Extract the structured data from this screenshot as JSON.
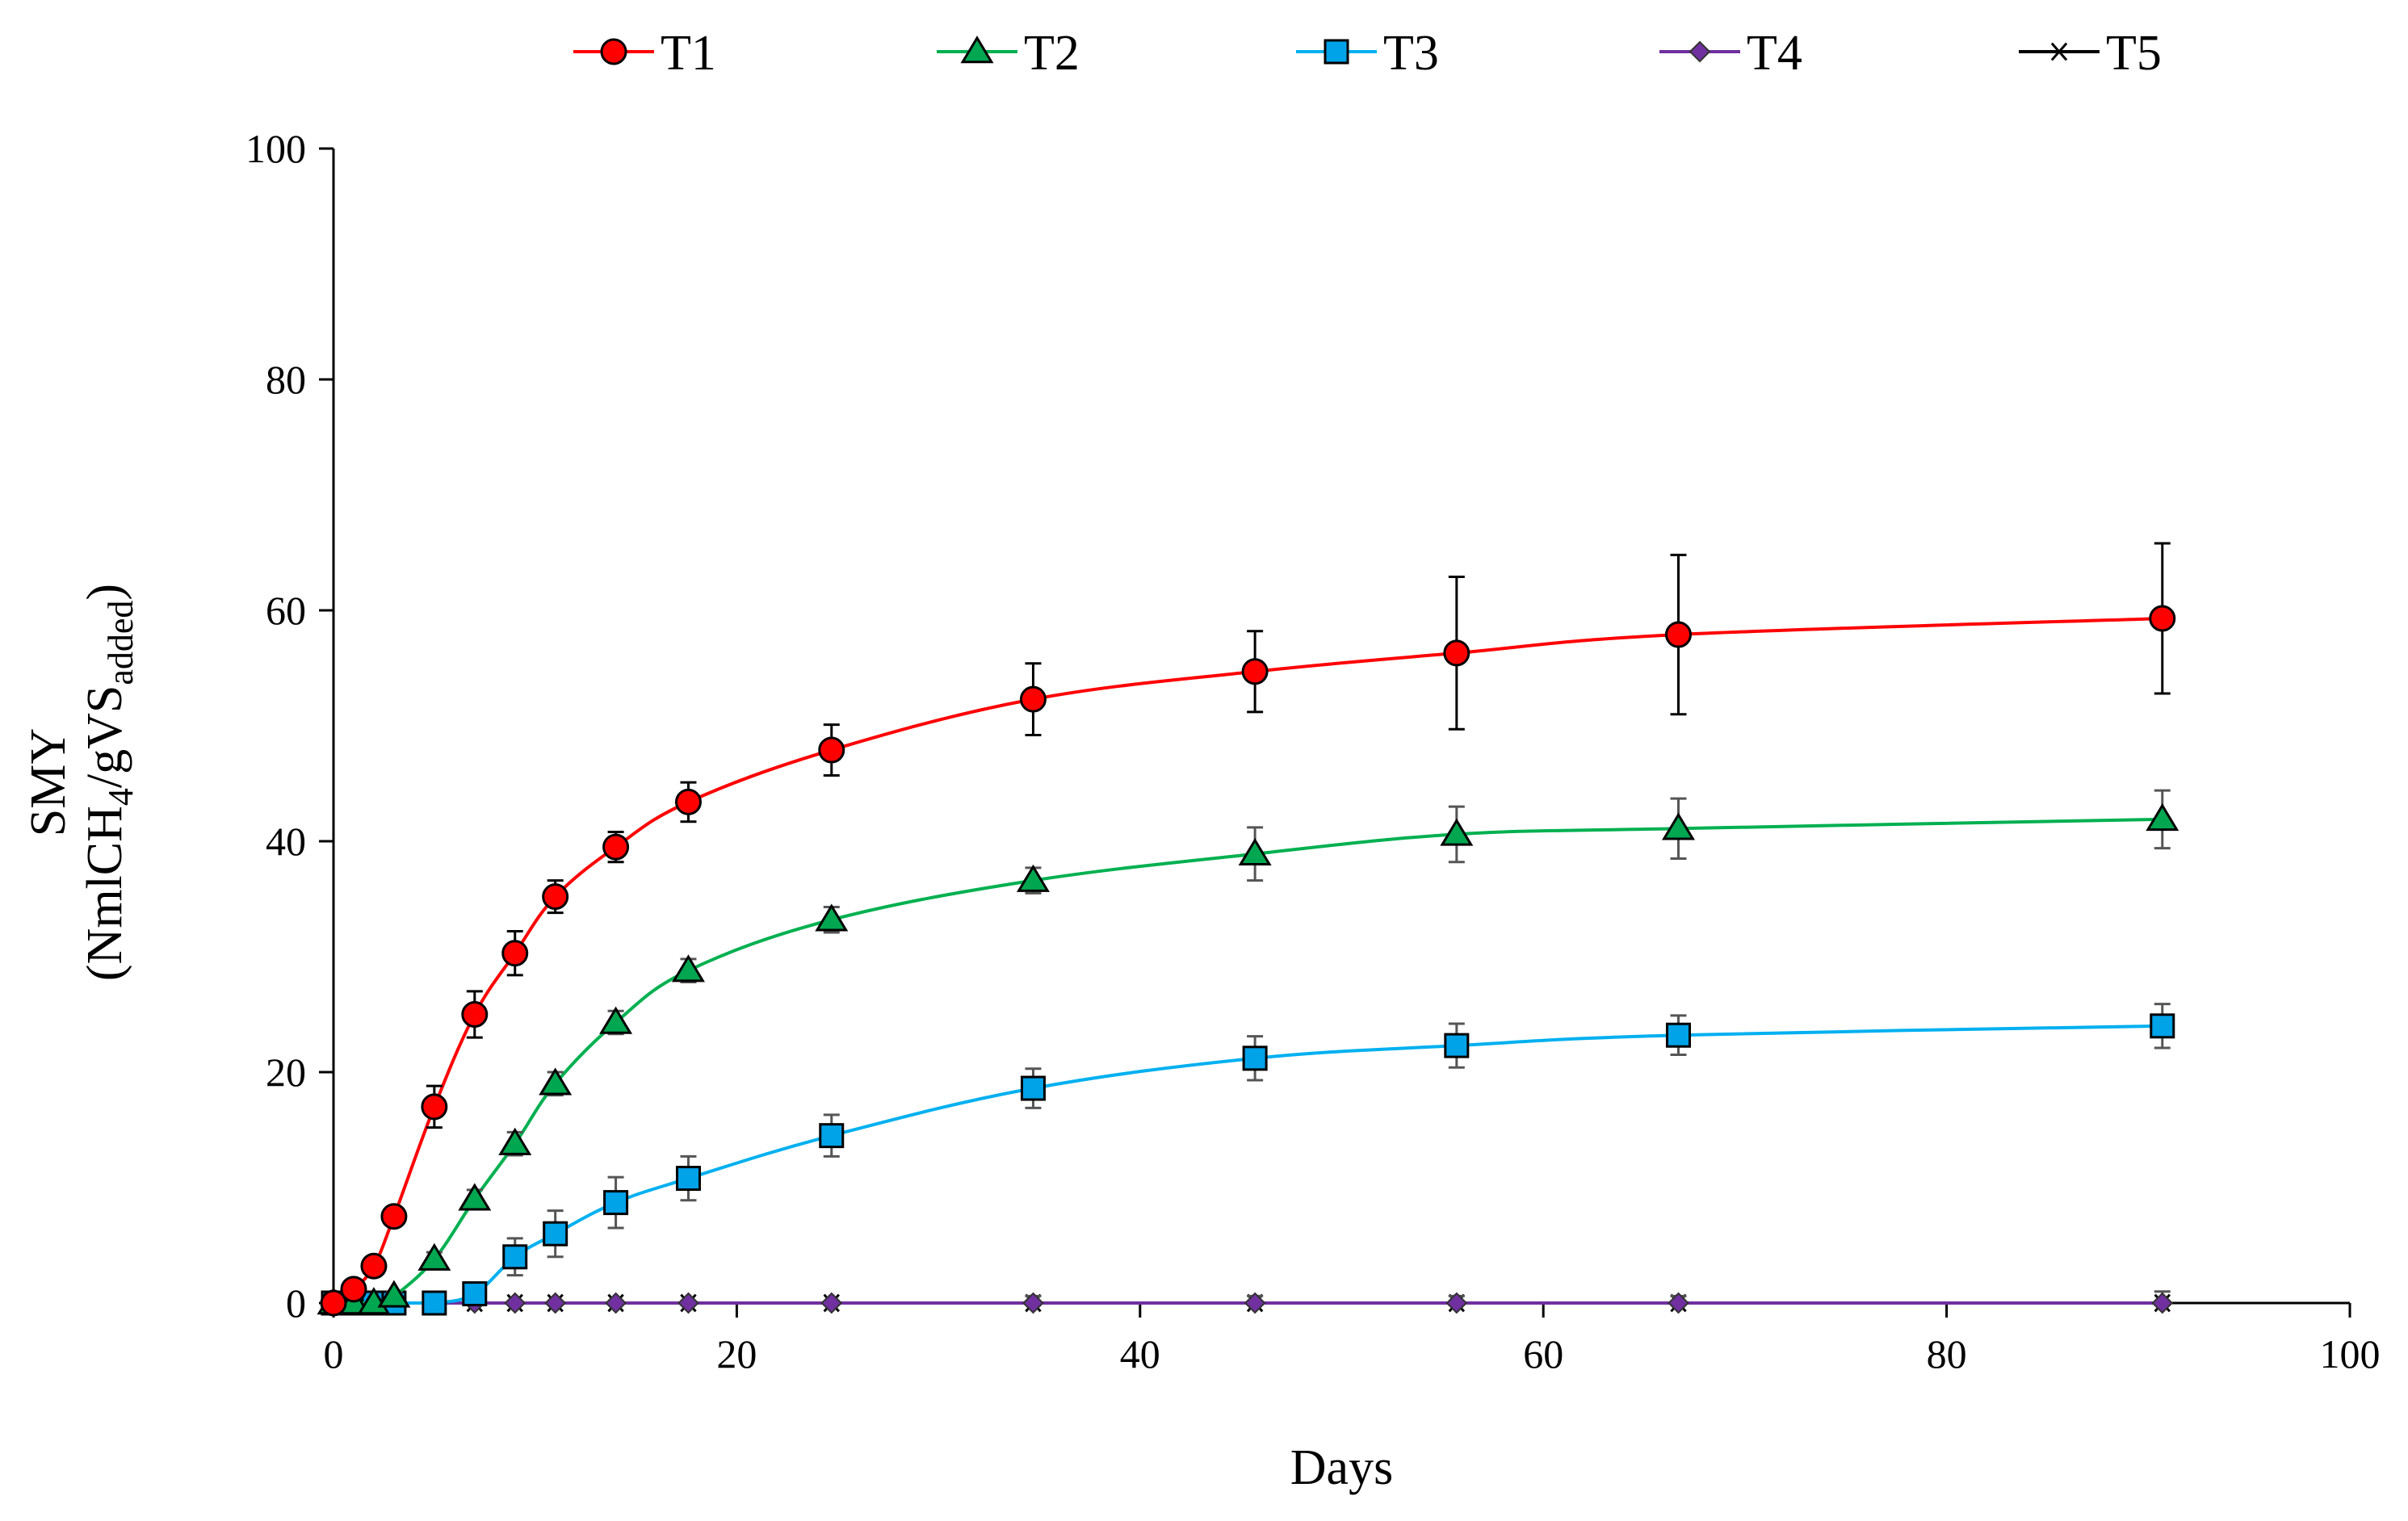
{
  "chart_data": {
    "type": "line",
    "title": "",
    "xlabel": "Days",
    "ylabel": {
      "line1": "SMY",
      "line2_open": "(NmlCH",
      "line2_sub1": "4",
      "line2_mid": "/gVS",
      "line2_sub2": "added",
      "line2_close": ")"
    },
    "xlim": [
      0,
      100
    ],
    "ylim": [
      0,
      100
    ],
    "xticks": [
      0,
      20,
      40,
      60,
      80,
      100
    ],
    "yticks": [
      0,
      20,
      40,
      60,
      80,
      100
    ],
    "legend_position": "top",
    "series": [
      {
        "name": "T1",
        "color": "#ff0000",
        "marker_fill": "#ff0000",
        "marker": "circle",
        "x": [
          0,
          1,
          2,
          3,
          5,
          7,
          9,
          11,
          14,
          17.6,
          24.7,
          34.7,
          45.7,
          55.7,
          66.7,
          90.7
        ],
        "y": [
          0,
          1.2,
          3.2,
          7.5,
          17,
          25,
          30.3,
          35.2,
          39.5,
          43.4,
          47.9,
          52.3,
          54.7,
          56.3,
          57.9,
          59.3
        ],
        "err": [
          0,
          0.5,
          0.6,
          0.8,
          1.8,
          2,
          1.9,
          1.4,
          1.3,
          1.7,
          2.2,
          3.1,
          3.5,
          6.6,
          6.9,
          6.5
        ]
      },
      {
        "name": "T2",
        "color": "#00b050",
        "marker_fill": "#00a650",
        "marker": "triangle",
        "x": [
          0,
          1,
          2,
          3,
          5,
          7,
          9,
          11,
          14,
          17.6,
          24.7,
          34.7,
          45.7,
          55.7,
          66.7,
          90.7
        ],
        "y": [
          0,
          0,
          0,
          0.6,
          3.8,
          9,
          13.8,
          19,
          24.3,
          28.8,
          33.2,
          36.6,
          38.9,
          40.6,
          41.1,
          41.9
        ],
        "err": [
          0,
          0,
          0,
          0.3,
          0.6,
          0.8,
          1,
          1,
          1,
          1,
          1.1,
          1.1,
          2.3,
          2.4,
          2.6,
          2.5
        ]
      },
      {
        "name": "T3",
        "color": "#00b0f0",
        "marker_fill": "#00a2e8",
        "marker": "square",
        "x": [
          0,
          1,
          2,
          3,
          5,
          7,
          9,
          11,
          14,
          17.6,
          24.7,
          34.7,
          45.7,
          55.7,
          66.7,
          90.7
        ],
        "y": [
          0,
          0,
          0,
          0,
          0,
          0.8,
          4,
          6,
          8.7,
          10.8,
          14.5,
          18.6,
          21.2,
          22.3,
          23.2,
          24
        ],
        "err": [
          0,
          0,
          0,
          0,
          0,
          0.6,
          1.6,
          2,
          2.2,
          1.9,
          1.8,
          1.7,
          1.9,
          1.9,
          1.7,
          1.9
        ]
      },
      {
        "name": "T4",
        "color": "#7030a0",
        "marker_fill": "#7030a0",
        "marker": "diamond",
        "x": [
          0,
          1,
          2,
          3,
          5,
          7,
          9,
          11,
          14,
          17.6,
          24.7,
          34.7,
          45.7,
          55.7,
          66.7,
          90.7
        ],
        "y": [
          0,
          0,
          0,
          0,
          0,
          0,
          0,
          0,
          0,
          0,
          0,
          0,
          0,
          0,
          0,
          0
        ],
        "err": [
          0,
          0,
          0,
          0,
          0,
          0,
          0,
          0,
          0,
          0,
          0,
          0.6,
          0.6,
          0.6,
          0.6,
          1
        ]
      },
      {
        "name": "T5",
        "color": "#000000",
        "marker_fill": "#000000",
        "marker": "asterisk",
        "x": [
          0,
          1,
          2,
          3,
          5,
          7,
          9,
          11,
          14,
          17.6,
          24.7,
          34.7,
          45.7,
          55.7,
          66.7,
          90.7
        ],
        "y": [
          0,
          0,
          0,
          0,
          0,
          0,
          0,
          0,
          0,
          0,
          0,
          0,
          0,
          0,
          0,
          0
        ],
        "err": [
          0,
          0,
          0,
          0,
          0,
          0,
          0,
          0,
          0,
          0,
          0,
          0,
          0,
          0,
          0,
          0
        ]
      }
    ]
  }
}
